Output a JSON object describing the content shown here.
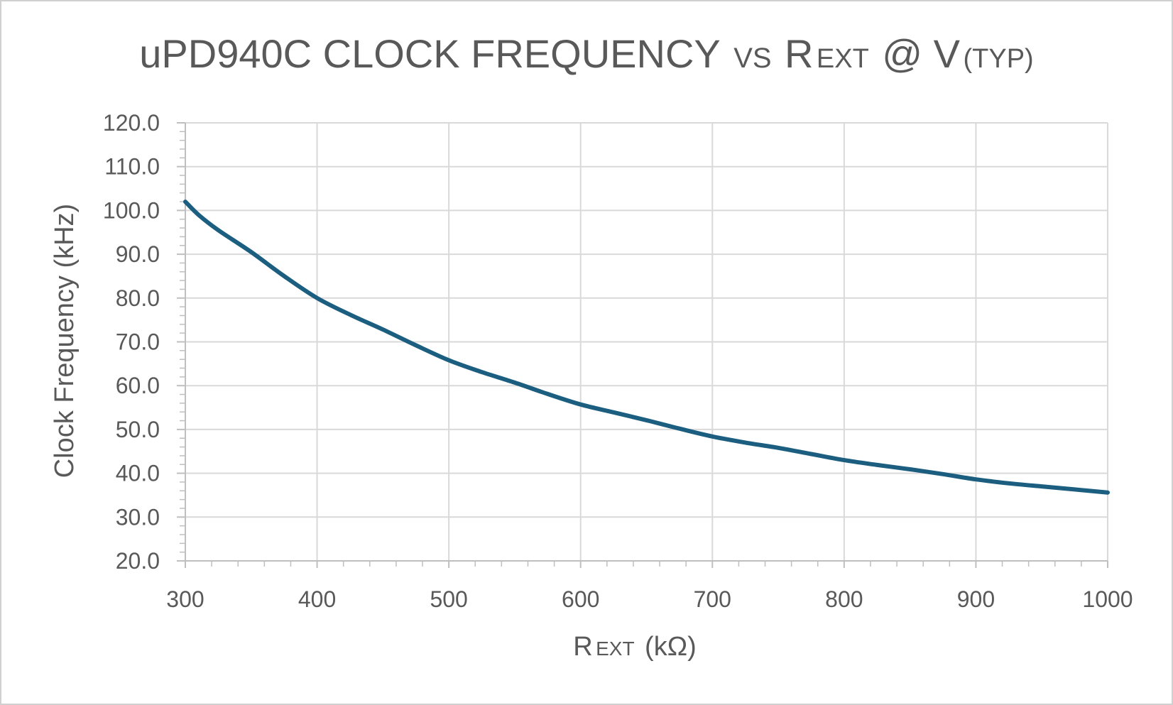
{
  "chart_data": {
    "type": "line",
    "title": {
      "main": "uPD940C CLOCK FREQUENCY",
      "vs": "VS",
      "r": "R",
      "ext": "EXT",
      "at": "@ V",
      "typ": "(TYP)"
    },
    "xlabel": {
      "r": "R",
      "ext": "EXT",
      "unit": "(kΩ)"
    },
    "ylabel": "Clock Frequency (kHz)",
    "xlim": [
      300,
      1000
    ],
    "ylim": [
      20,
      120
    ],
    "x_ticks": [
      "300",
      "400",
      "500",
      "600",
      "700",
      "800",
      "900",
      "1000"
    ],
    "y_ticks": [
      "20.0",
      "30.0",
      "40.0",
      "50.0",
      "60.0",
      "70.0",
      "80.0",
      "90.0",
      "100.0",
      "110.0",
      "120.0"
    ],
    "grid": true,
    "legend": "none",
    "series": [
      {
        "color": "#1b5e80",
        "x": [
          300,
          310,
          325,
          350,
          375,
          400,
          425,
          450,
          475,
          500,
          525,
          550,
          575,
          600,
          625,
          650,
          675,
          700,
          725,
          750,
          775,
          800,
          825,
          850,
          875,
          900,
          925,
          950,
          975,
          1000
        ],
        "y": [
          102.0,
          99.0,
          95.5,
          90.5,
          85.0,
          80.0,
          76.2,
          72.8,
          69.2,
          65.8,
          63.1,
          60.7,
          58.1,
          55.7,
          53.9,
          52.1,
          50.2,
          48.4,
          47.0,
          45.8,
          44.4,
          43.0,
          41.9,
          40.9,
          39.8,
          38.6,
          37.7,
          37.0,
          36.3,
          35.6
        ]
      }
    ]
  }
}
